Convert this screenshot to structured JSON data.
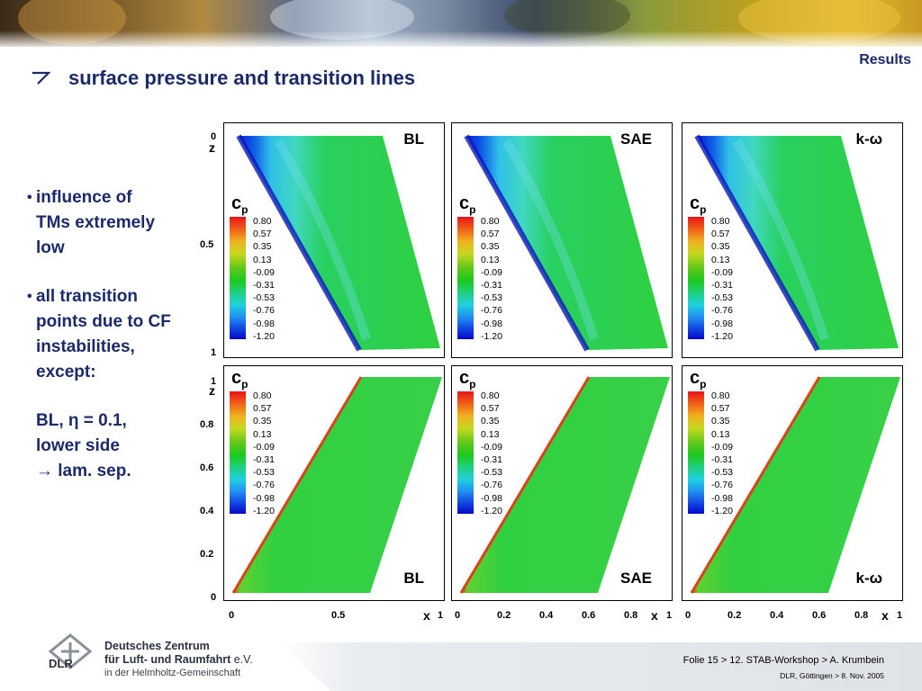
{
  "header": {
    "section": "Results",
    "title": "surface pressure and transition lines"
  },
  "bullets": [
    [
      "influence of",
      "TMs extremely",
      "low"
    ],
    [
      "all transition",
      "points due to CF",
      "instabilities,",
      "except:"
    ]
  ],
  "exception": [
    "BL, η = 0.1,",
    "lower side",
    "→ lam. sep."
  ],
  "legend": {
    "symbol": "c",
    "subscript": "p",
    "levels": [
      "0.80",
      "0.57",
      "0.35",
      "0.13",
      "-0.09",
      "-0.31",
      "-0.53",
      "-0.76",
      "-0.98",
      "-1.20"
    ],
    "colors": [
      "#e8141a",
      "#f0b020",
      "#60c81a",
      "#1ec81e",
      "#20d0e0",
      "#1040e0",
      "#0808c8"
    ]
  },
  "panels": {
    "top": [
      "BL",
      "SAE",
      "k-ω"
    ],
    "bottom": [
      "BL",
      "SAE",
      "k-ω"
    ]
  },
  "axes": {
    "top_z_ticks": [
      "0",
      "0.5",
      "1"
    ],
    "bottom_z_ticks": [
      "1",
      "0.8",
      "0.6",
      "0.4",
      "0.2",
      "0"
    ],
    "x_ticks_first": [
      "0",
      "0.5",
      "1"
    ],
    "x_ticks_other": [
      "0",
      "0.2",
      "0.4",
      "0.6",
      "0.8",
      "1"
    ],
    "z_label": "z",
    "x_label": "x"
  },
  "footer": {
    "line1": "Folie 15 > 12. STAB-Workshop > A. Krumbein",
    "line2": "DLR, Göttingen > 8. Nov. 2005"
  },
  "logo": {
    "acronym": "DLR",
    "line1": "Deutsches Zentrum",
    "line2": "für Luft- und Raumfahrt",
    "line2_suffix": "e.V.",
    "line3": "in der Helmholtz-Gemeinschaft"
  }
}
